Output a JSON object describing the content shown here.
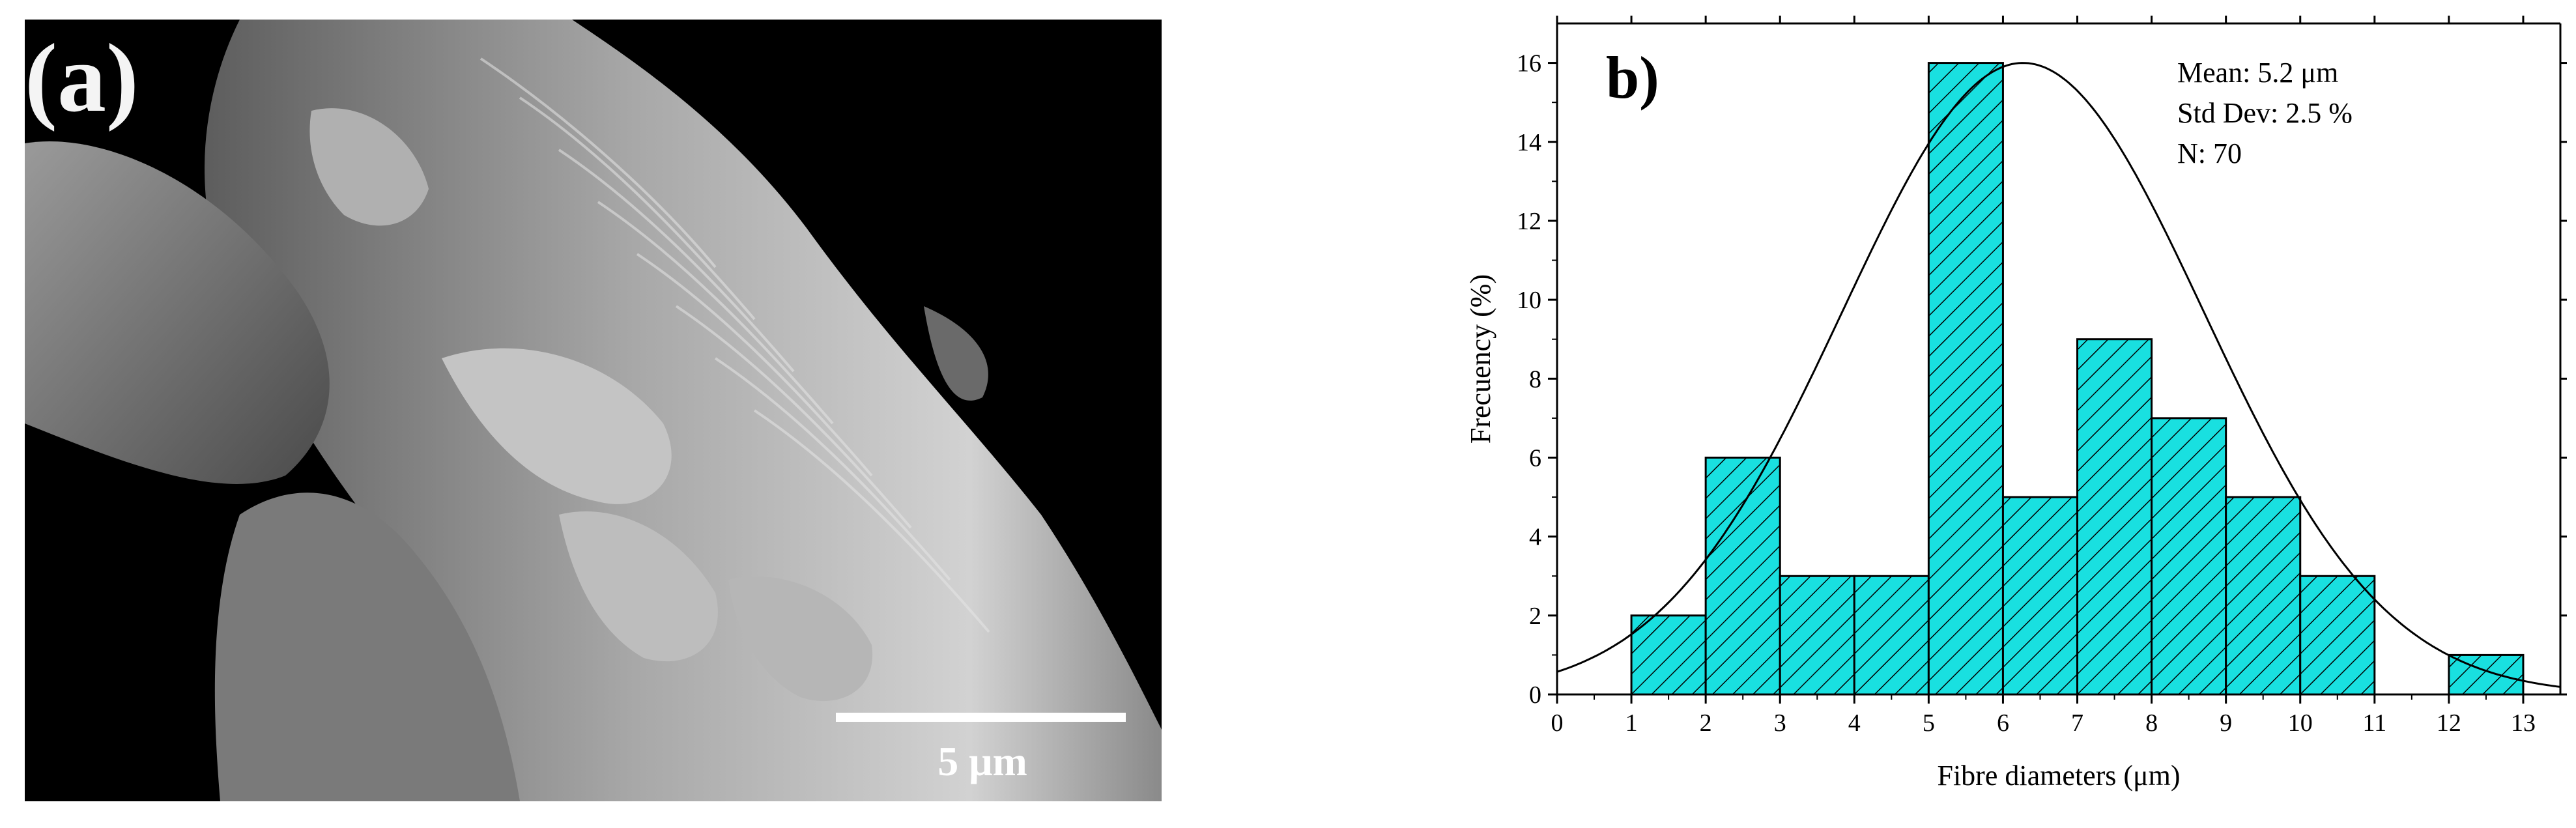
{
  "sem_panel": {
    "label": "(a)",
    "scale_bar_label": "5 μm",
    "background_color": "#000000",
    "foreground_color": "#ffffff"
  },
  "chart_panel": {
    "label": "b)",
    "stats": {
      "mean": "Mean: 5.2 μm",
      "std_dev": "Std Dev: 2.5 %",
      "n": "N: 70"
    }
  },
  "chart_data": {
    "type": "bar",
    "subtype": "histogram with normal fit curve",
    "bins": [
      {
        "start": 1,
        "end": 2,
        "value": 2
      },
      {
        "start": 2,
        "end": 3,
        "value": 6
      },
      {
        "start": 3,
        "end": 4,
        "value": 3
      },
      {
        "start": 4,
        "end": 5,
        "value": 3
      },
      {
        "start": 5,
        "end": 6,
        "value": 16
      },
      {
        "start": 6,
        "end": 7,
        "value": 5
      },
      {
        "start": 7,
        "end": 8,
        "value": 9
      },
      {
        "start": 8,
        "end": 9,
        "value": 7
      },
      {
        "start": 9,
        "end": 10,
        "value": 5
      },
      {
        "start": 10,
        "end": 11,
        "value": 3
      },
      {
        "start": 12,
        "end": 13,
        "value": 1
      }
    ],
    "fit": {
      "type": "normal",
      "peak": 16,
      "center": 6.27,
      "sigma": 2.43
    },
    "xlabel": "Fibre diameters (μm)",
    "ylabel": "Frecuency (%)",
    "xlim": [
      0,
      13.5
    ],
    "ylim": [
      0,
      17
    ],
    "xticks": [
      0,
      1,
      2,
      3,
      4,
      5,
      6,
      7,
      8,
      9,
      10,
      11,
      12,
      13
    ],
    "yticks": [
      0,
      2,
      4,
      6,
      8,
      10,
      12,
      14,
      16
    ],
    "bar_color": "#19e0e0",
    "bar_hatch": "diagonal",
    "grid": false
  }
}
